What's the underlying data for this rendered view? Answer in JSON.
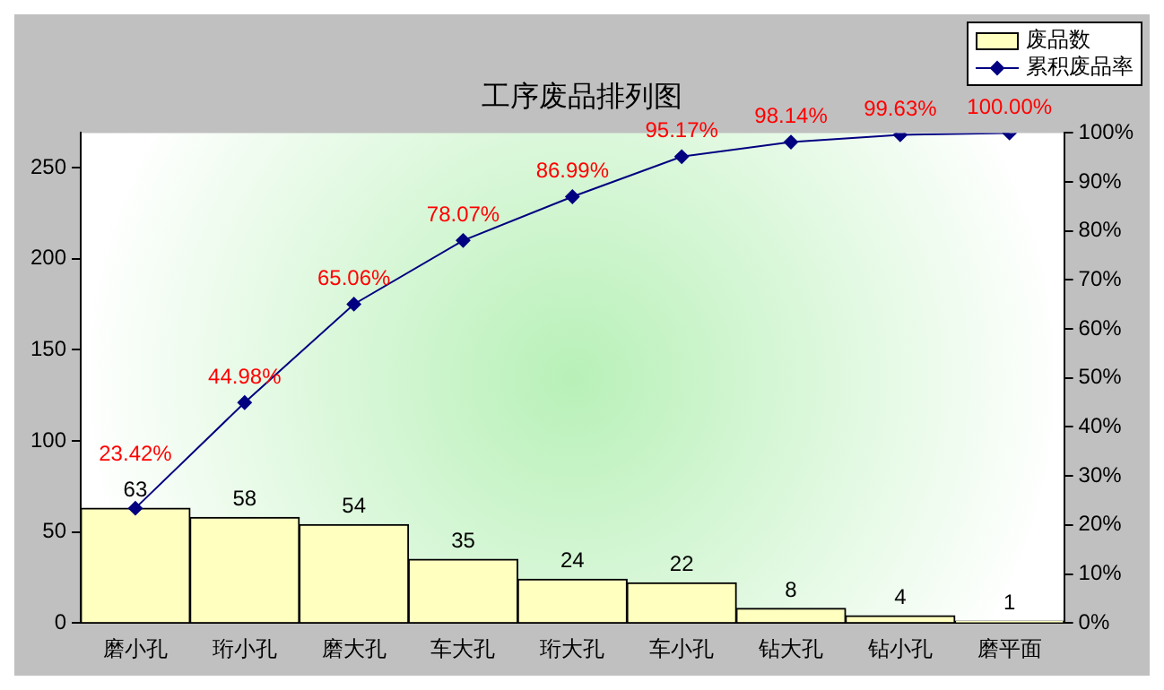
{
  "chart_data": {
    "type": "bar",
    "title": "工序废品排列图",
    "categories": [
      "磨小孔",
      "珩小孔",
      "磨大孔",
      "车大孔",
      "珩大孔",
      "车小孔",
      "钻大孔",
      "钻小孔",
      "磨平面"
    ],
    "series": [
      {
        "name": "废品数",
        "color": "#ffffc0",
        "values": [
          63,
          58,
          54,
          35,
          24,
          22,
          8,
          4,
          1
        ],
        "value_labels": [
          "63",
          "58",
          "54",
          "35",
          "24",
          "22",
          "8",
          "4",
          "1"
        ]
      },
      {
        "name": "累积废品率",
        "type": "line",
        "axis": "y2",
        "color": "#000080",
        "marker": "diamond",
        "values": [
          23.42,
          44.98,
          65.06,
          78.07,
          86.99,
          95.17,
          98.14,
          99.63,
          100.0
        ],
        "value_labels": [
          "23.42%",
          "44.98%",
          "65.06%",
          "78.07%",
          "86.99%",
          "95.17%",
          "98.14%",
          "99.63%",
          "100.00%"
        ]
      }
    ],
    "ylim": [
      0,
      269
    ],
    "yticks": [
      0,
      50,
      100,
      150,
      200,
      250
    ],
    "y2lim": [
      0,
      100
    ],
    "y2ticks": [
      {
        "value": 0,
        "label": "0%"
      },
      {
        "value": 10,
        "label": "10%"
      },
      {
        "value": 20,
        "label": "20%"
      },
      {
        "value": 30,
        "label": "30%"
      },
      {
        "value": 40,
        "label": "40%"
      },
      {
        "value": 50,
        "label": "50%"
      },
      {
        "value": 60,
        "label": "60%"
      },
      {
        "value": 70,
        "label": "70%"
      },
      {
        "value": 80,
        "label": "80%"
      },
      {
        "value": 90,
        "label": "90%"
      },
      {
        "value": 100,
        "label": "100%"
      }
    ],
    "grid": false,
    "legend": "top right"
  }
}
